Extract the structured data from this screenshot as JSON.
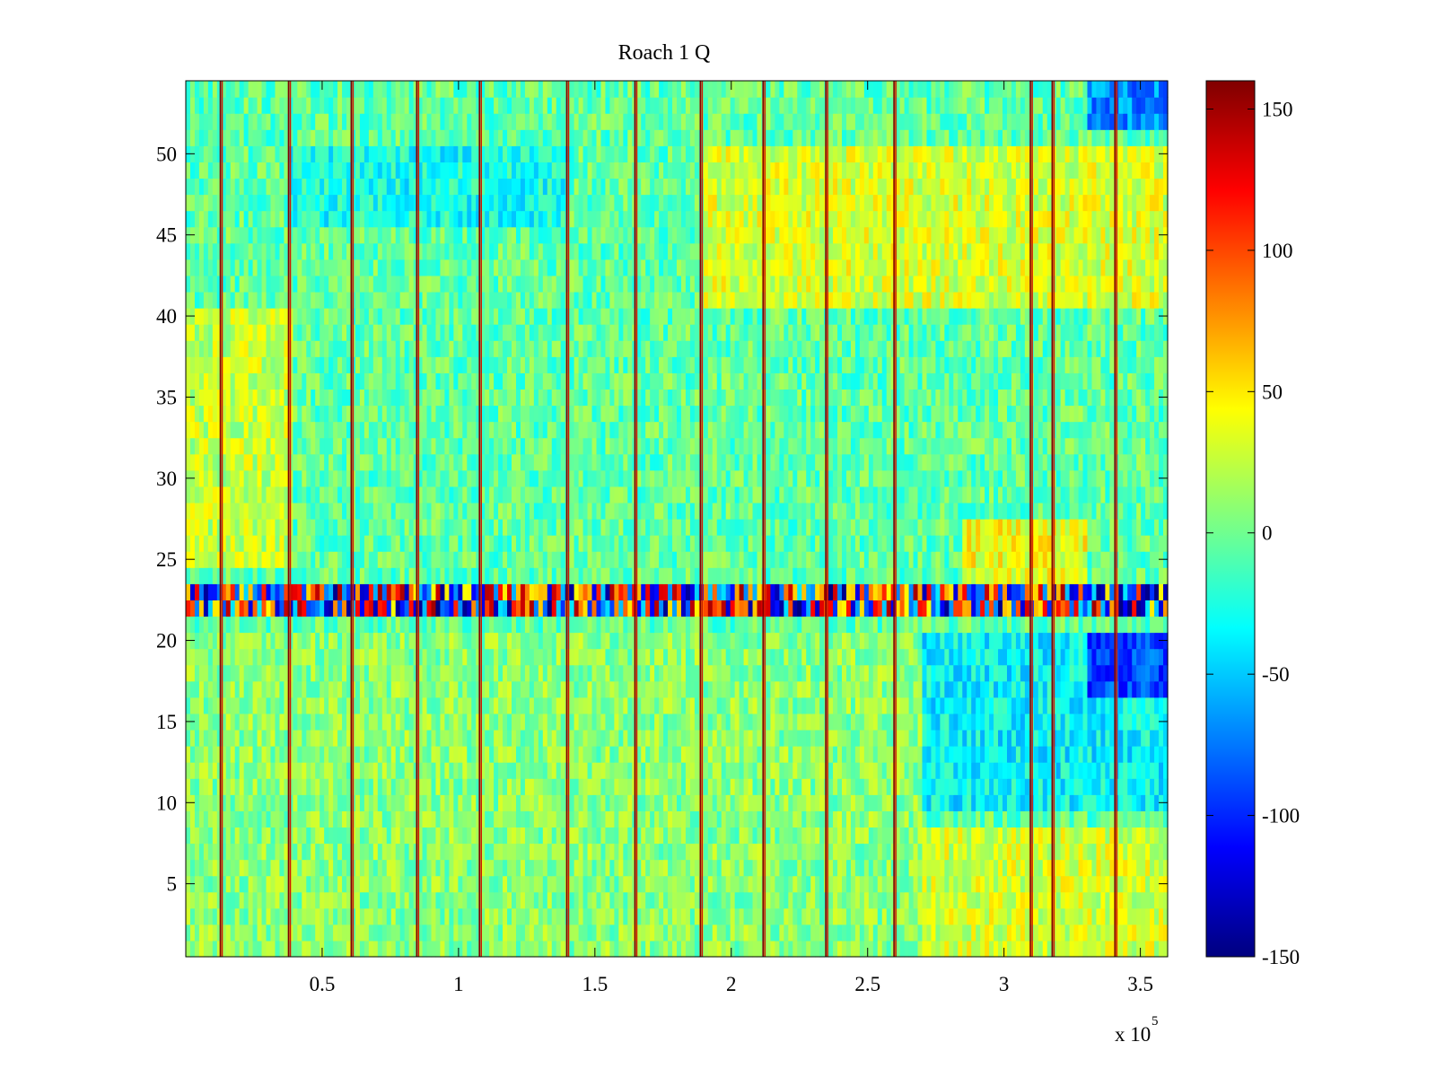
{
  "chart_data": {
    "type": "heatmap",
    "title": "Roach 1 Q",
    "xlabel": "",
    "ylabel": "",
    "x_multiplier_label": "x 10",
    "x_multiplier_exponent": "5",
    "xlim": [
      0,
      360000
    ],
    "ylim": [
      0.5,
      54.5
    ],
    "n_rows": 54,
    "x_ticks": [
      50000,
      100000,
      150000,
      200000,
      250000,
      300000,
      350000
    ],
    "x_tick_labels": [
      "0.5",
      "1",
      "1.5",
      "2",
      "2.5",
      "3",
      "3.5"
    ],
    "y_ticks": [
      5,
      10,
      15,
      20,
      25,
      30,
      35,
      40,
      45,
      50
    ],
    "y_tick_labels": [
      "5",
      "10",
      "15",
      "20",
      "25",
      "30",
      "35",
      "40",
      "45",
      "50"
    ],
    "colorbar": {
      "colormap": "jet",
      "clim": [
        -150,
        160
      ],
      "ticks": [
        -150,
        -100,
        -50,
        0,
        50,
        100,
        150
      ],
      "tick_labels": [
        "-150",
        "-100",
        "-50",
        "0",
        "50",
        "100",
        "150"
      ]
    },
    "vertical_lines_x": [
      13000,
      38000,
      61000,
      85000,
      108000,
      140000,
      165000,
      189000,
      212000,
      235000,
      260000,
      310000,
      318000,
      341000
    ],
    "noisy_rows": [
      22,
      23
    ],
    "regions": [
      {
        "x": [
          0,
          270000
        ],
        "y": [
          1,
          20
        ],
        "mean": 8
      },
      {
        "x": [
          38000,
          140000
        ],
        "y": [
          46,
          50
        ],
        "mean": -28
      },
      {
        "x": [
          190000,
          360000
        ],
        "y": [
          41,
          50
        ],
        "mean": 32
      },
      {
        "x": [
          270000,
          360000
        ],
        "y": [
          1,
          8
        ],
        "mean": 30
      },
      {
        "x": [
          270000,
          360000
        ],
        "y": [
          10,
          20
        ],
        "mean": -35
      },
      {
        "x": [
          330000,
          360000
        ],
        "y": [
          17,
          20
        ],
        "mean": -90
      },
      {
        "x": [
          330000,
          360000
        ],
        "y": [
          52,
          54
        ],
        "mean": -70
      },
      {
        "x": [
          285000,
          330000
        ],
        "y": [
          24,
          27
        ],
        "mean": 40
      },
      {
        "x": [
          0,
          40000
        ],
        "y": [
          25,
          40
        ],
        "mean": 25
      }
    ],
    "grid": false
  }
}
